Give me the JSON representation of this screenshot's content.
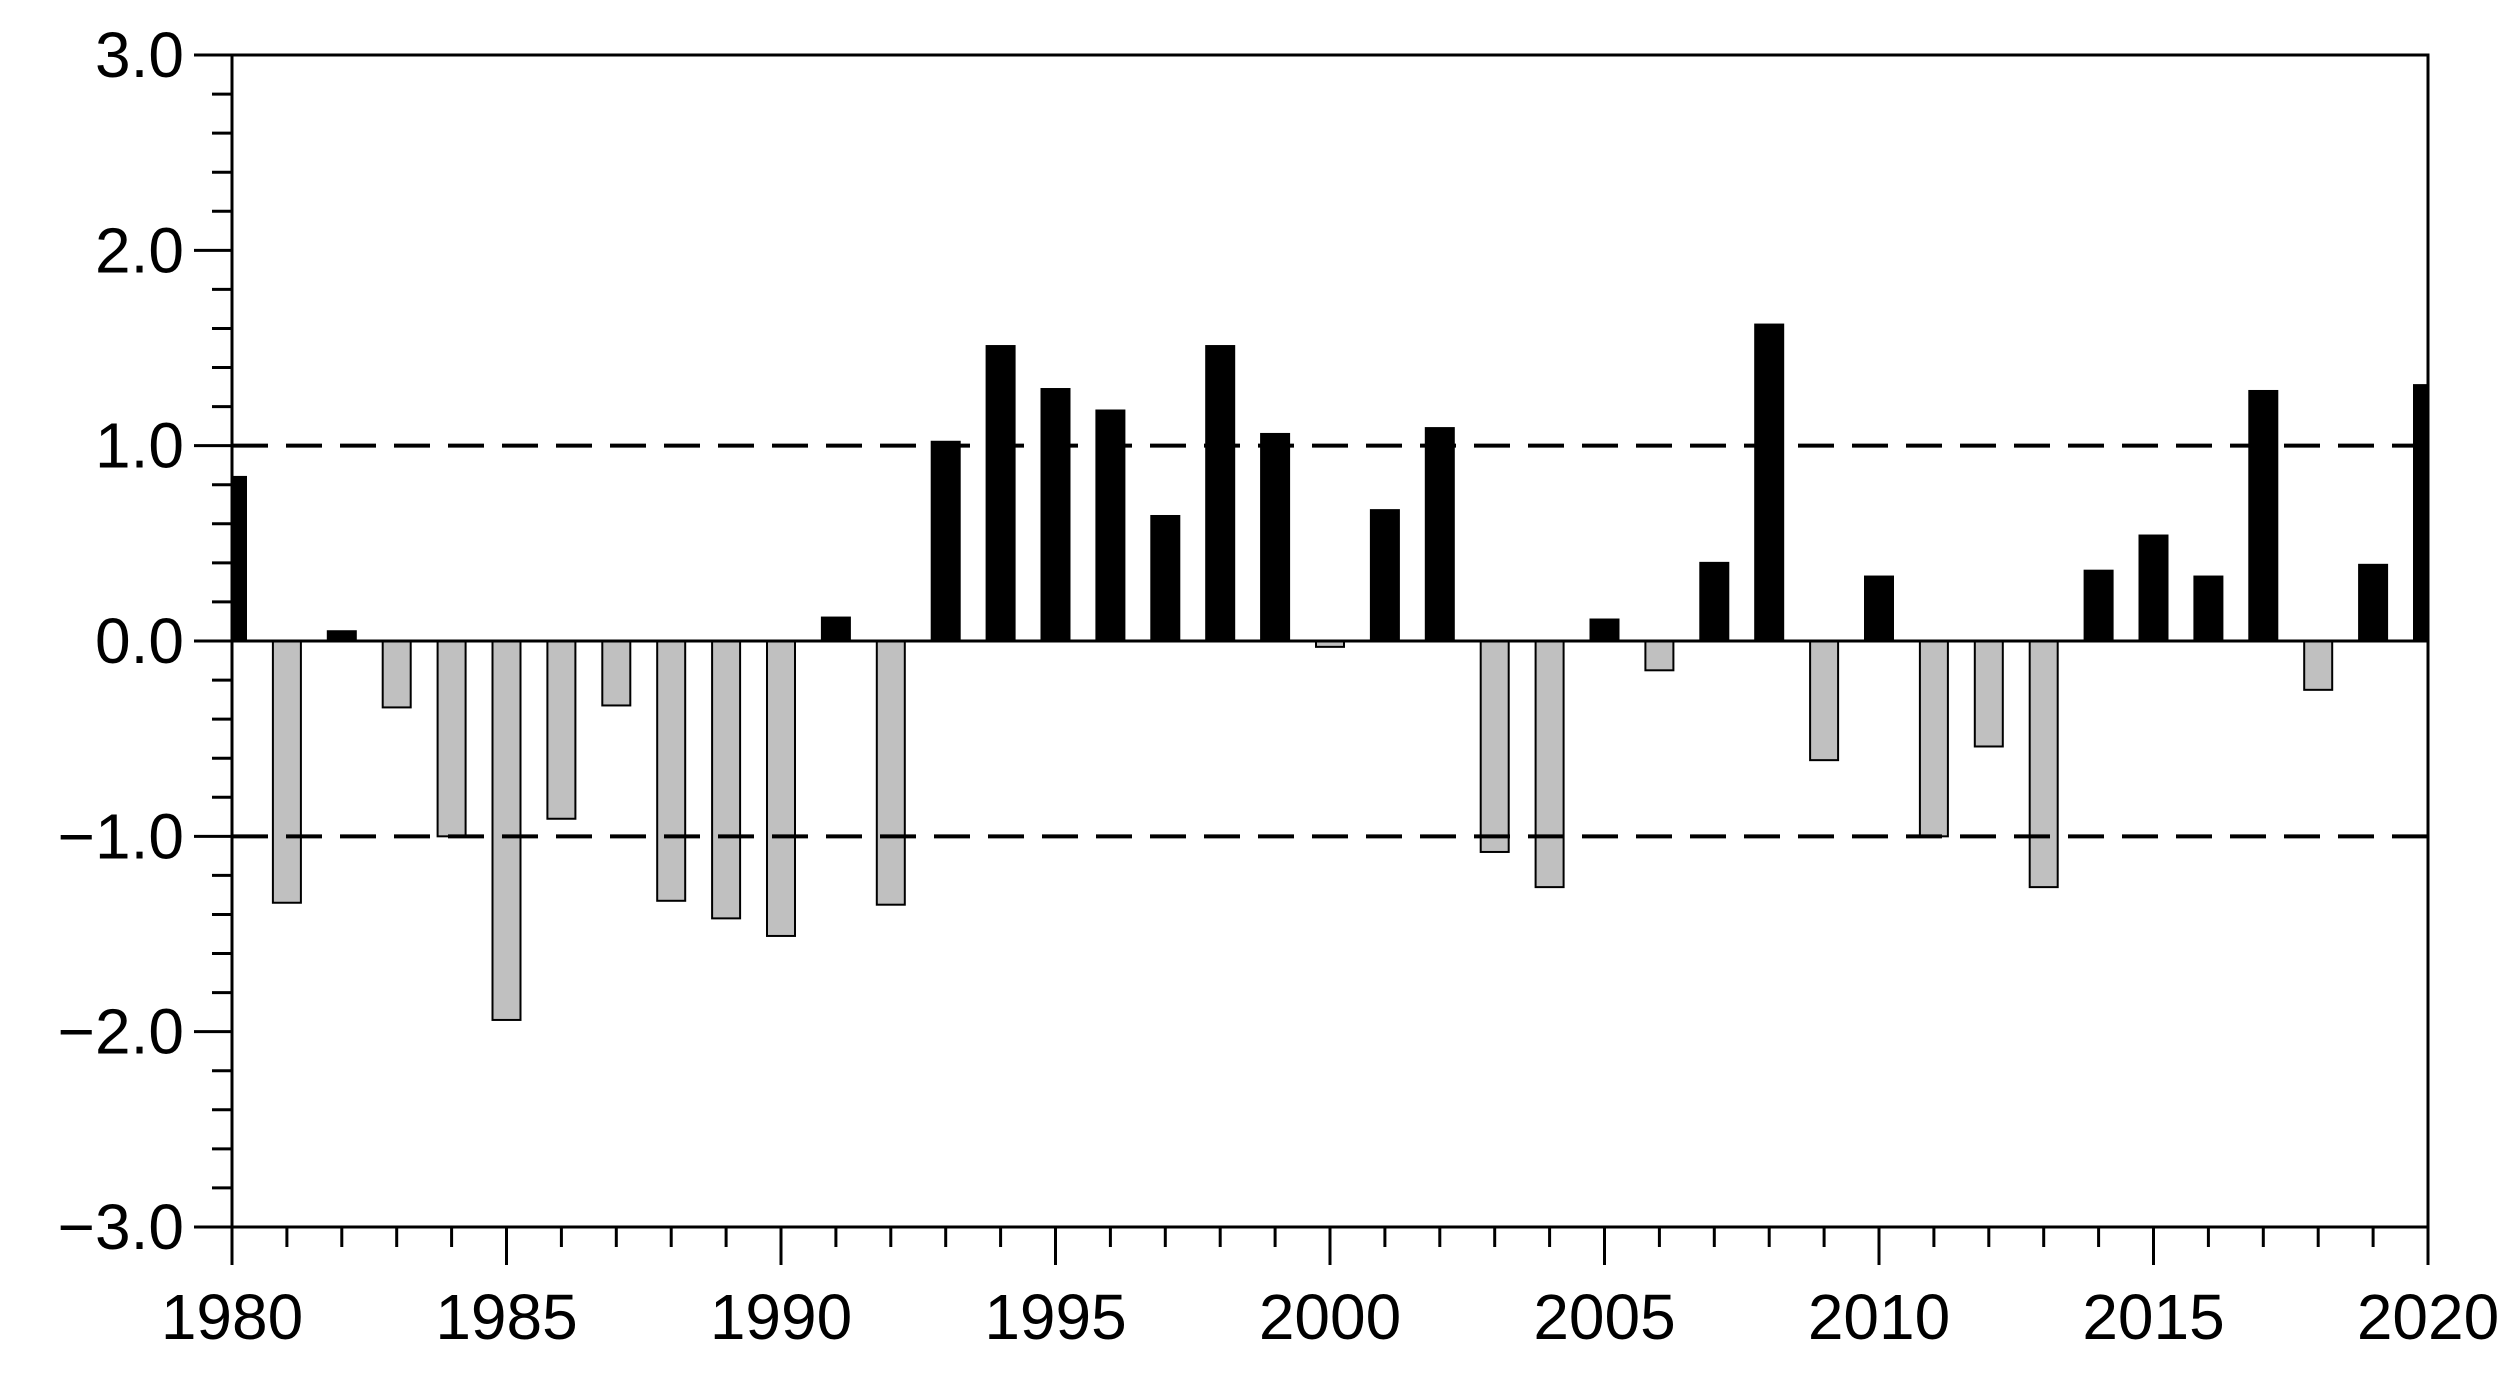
{
  "chart_data": {
    "type": "bar",
    "title": "",
    "xlabel": "",
    "ylabel": "",
    "x": [
      1980,
      1981,
      1982,
      1983,
      1984,
      1985,
      1986,
      1987,
      1988,
      1989,
      1990,
      1991,
      1992,
      1993,
      1994,
      1995,
      1996,
      1997,
      1998,
      1999,
      2000,
      2001,
      2002,
      2003,
      2004,
      2005,
      2006,
      2007,
      2008,
      2009,
      2010,
      2011,
      2012,
      2013,
      2014,
      2015,
      2016,
      2017,
      2018,
      2019,
      2020
    ],
    "values": [
      0.84,
      -1.34,
      0.05,
      -0.34,
      -1.0,
      -1.94,
      -0.91,
      -0.33,
      -1.33,
      -1.42,
      -1.51,
      0.12,
      -1.35,
      1.02,
      1.51,
      1.29,
      1.18,
      0.64,
      1.51,
      1.06,
      -0.03,
      0.67,
      1.09,
      -1.08,
      -1.26,
      0.11,
      -0.15,
      0.4,
      1.62,
      -0.61,
      0.33,
      -1.0,
      -0.54,
      -1.26,
      0.36,
      0.54,
      0.33,
      1.28,
      -0.25,
      0.39,
      1.31
    ],
    "xlim": [
      1980,
      2020
    ],
    "ylim": [
      -3.0,
      3.0
    ],
    "x_ticks": [
      "1980",
      "1985",
      "1990",
      "1995",
      "2000",
      "2005",
      "2010",
      "2015",
      "2020"
    ],
    "y_ticks": [
      "3.0",
      "2.0",
      "1.0",
      "0.0",
      "−1.0",
      "−2.0",
      "−3.0"
    ],
    "thresholds": [
      1.0,
      -1.0
    ],
    "colors": {
      "positive": "#000000",
      "negative": "#c0c0c0",
      "axis": "#000000",
      "threshold": "#000000"
    },
    "grid": false,
    "legend": "none"
  }
}
